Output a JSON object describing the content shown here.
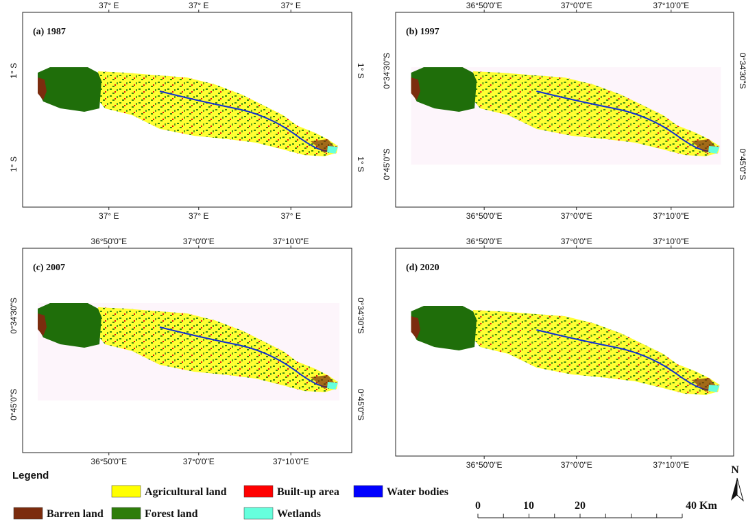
{
  "panels": [
    {
      "title": "(a) 1987",
      "top_labels": [
        "37° E",
        "37° E",
        "37° E"
      ],
      "bottom_labels": [
        "37° E",
        "37° E",
        "37° E"
      ],
      "left_labels": [
        "1° S",
        "1° S"
      ],
      "right_labels": [
        "1° S",
        "1° S"
      ]
    },
    {
      "title": "(b) 1997",
      "top_labels": [
        "36°50'0\"E",
        "37°0'0\"E",
        "37°10'0\"E"
      ],
      "bottom_labels": [
        "36°50'0\"E",
        "37°0'0\"E",
        "37°10'0\"E"
      ],
      "left_labels": [
        "0°34'30\"S",
        "0°45'0\"S"
      ],
      "right_labels": [
        "0°34'30\"S",
        "0°45'0\"S"
      ]
    },
    {
      "title": "(c) 2007",
      "top_labels": [
        "36°50'0\"E",
        "37°0'0\"E",
        "37°10'0\"E"
      ],
      "bottom_labels": [
        "36°50'0\"E",
        "37°0'0\"E",
        "37°10'0\"E"
      ],
      "left_labels": [
        "0°34'30\"S",
        "0°45'0\"S"
      ],
      "right_labels": [
        "0°34'30\"S",
        "0°45'0\"S"
      ]
    },
    {
      "title": "(d) 2020",
      "top_labels": [
        "36°50'0\"E",
        "37°0'0\"E",
        "37°10'0\"E"
      ],
      "bottom_labels": [
        "36°50'0\"E",
        "37°0'0\"E",
        "37°10'0\"E"
      ],
      "left_labels": [],
      "right_labels": []
    }
  ],
  "legend": {
    "title": "Legend",
    "items": [
      {
        "label": "Agricultural land",
        "color": "#ffff00"
      },
      {
        "label": "Built-up area",
        "color": "#ff0000"
      },
      {
        "label": "Water bodies",
        "color": "#0000ff"
      },
      {
        "label": "Barren land",
        "color": "#7b2c0e"
      },
      {
        "label": "Forest land",
        "color": "#2e7d0a"
      },
      {
        "label": "Wetlands",
        "color": "#66ffdd"
      }
    ]
  },
  "scale_bar": {
    "labels": [
      "0",
      "10",
      "20",
      "40 Km"
    ]
  },
  "north_arrow": "N"
}
